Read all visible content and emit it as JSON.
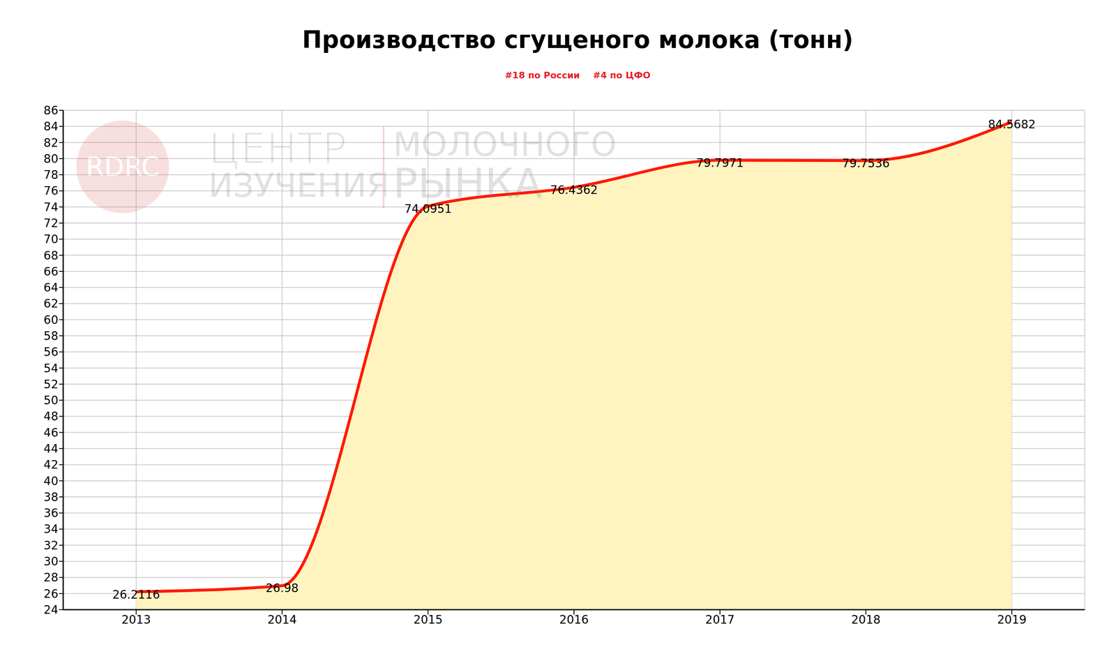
{
  "chart_data": {
    "type": "area",
    "title": "Производство сгущеного молока (тонн)",
    "subtitle": [
      "#18 по России",
      "#4 по ЦФО"
    ],
    "annotations": [
      "RDRC",
      "ЦЕНТР",
      "ИЗУЧЕНИЯ",
      "МОЛОЧНОГО",
      "РЫНКА"
    ],
    "x": [
      2013,
      2014,
      2015,
      2016,
      2017,
      2018,
      2019
    ],
    "values": [
      26.2116,
      26.98,
      74.0951,
      76.4362,
      79.7971,
      79.7536,
      84.5682
    ],
    "color": "#ff1a00",
    "xlim": [
      2012.5,
      2019.5
    ],
    "xticks": [
      2013,
      2014,
      2015,
      2016,
      2017,
      2018,
      2019
    ],
    "ylim": [
      24,
      86
    ],
    "yticks": [
      24,
      26,
      28,
      30,
      32,
      34,
      36,
      38,
      40,
      42,
      44,
      46,
      48,
      50,
      52,
      54,
      56,
      58,
      60,
      62,
      64,
      66,
      68,
      70,
      72,
      74,
      76,
      78,
      80,
      82,
      84,
      86
    ],
    "grid": true,
    "data_labels": true
  }
}
